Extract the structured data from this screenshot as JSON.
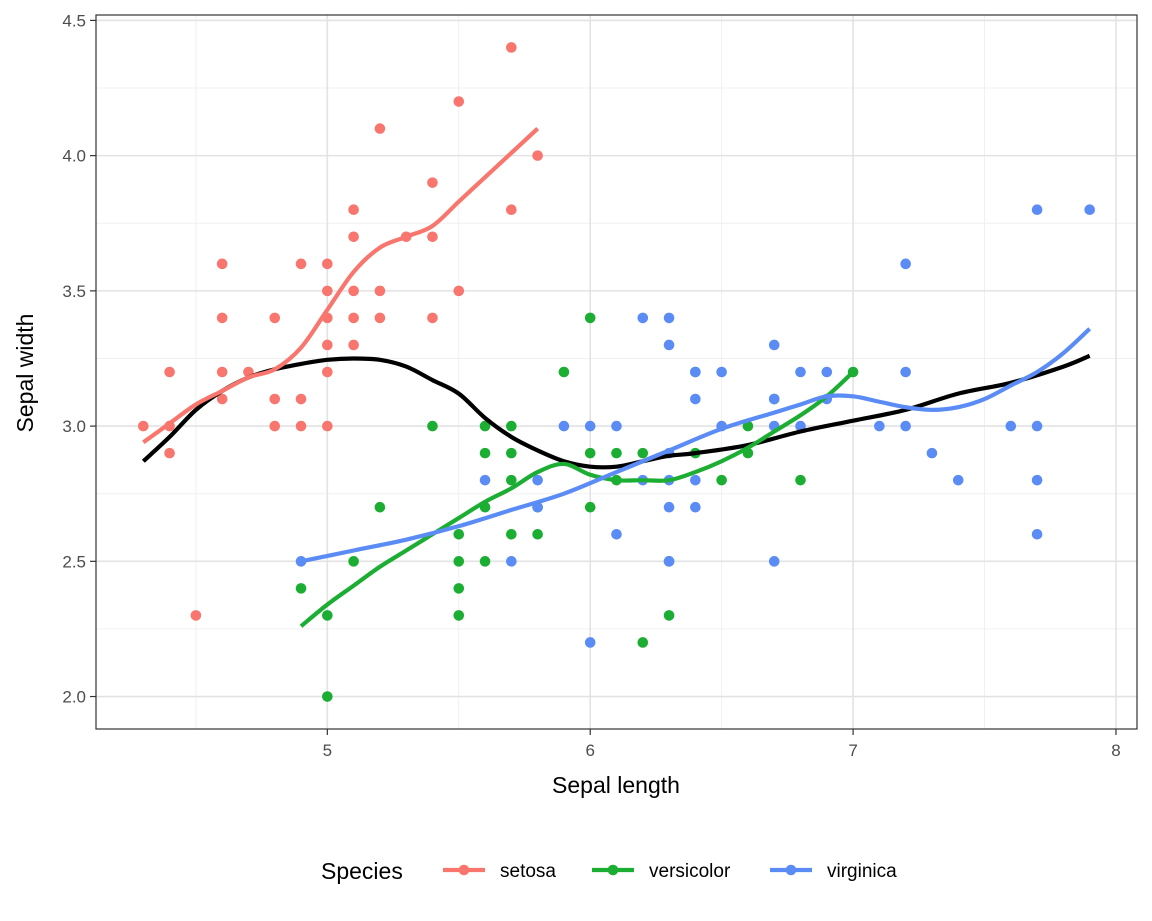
{
  "chart_data": {
    "type": "scatter",
    "title": "",
    "xlabel": "Sepal length",
    "ylabel": "Sepal width",
    "xlim": [
      4.12,
      8.08
    ],
    "ylim": [
      1.88,
      4.52
    ],
    "x_ticks": [
      5,
      6,
      7,
      8
    ],
    "x_tick_labels": [
      "5",
      "6",
      "7",
      "8"
    ],
    "y_ticks": [
      2.0,
      2.5,
      3.0,
      3.5,
      4.0,
      4.5
    ],
    "y_tick_labels": [
      "2.0",
      "2.5",
      "3.0",
      "3.5",
      "4.0",
      "4.5"
    ],
    "grid": true,
    "legend": {
      "title": "Species",
      "position": "bottom"
    },
    "series": [
      {
        "name": "setosa",
        "color": "#F8766D",
        "points": [
          [
            4.3,
            3.0
          ],
          [
            4.4,
            3.0
          ],
          [
            4.4,
            2.9
          ],
          [
            4.4,
            3.2
          ],
          [
            4.5,
            2.3
          ],
          [
            4.6,
            3.1
          ],
          [
            4.6,
            3.2
          ],
          [
            4.6,
            3.4
          ],
          [
            4.6,
            3.6
          ],
          [
            4.7,
            3.2
          ],
          [
            4.8,
            3.4
          ],
          [
            4.8,
            3.1
          ],
          [
            4.8,
            3.0
          ],
          [
            4.9,
            3.0
          ],
          [
            4.9,
            3.1
          ],
          [
            4.9,
            3.6
          ],
          [
            5.0,
            3.0
          ],
          [
            5.0,
            3.2
          ],
          [
            5.0,
            3.3
          ],
          [
            5.0,
            3.4
          ],
          [
            5.0,
            3.5
          ],
          [
            5.0,
            3.6
          ],
          [
            5.1,
            3.3
          ],
          [
            5.1,
            3.4
          ],
          [
            5.1,
            3.5
          ],
          [
            5.1,
            3.7
          ],
          [
            5.1,
            3.8
          ],
          [
            5.2,
            3.4
          ],
          [
            5.2,
            3.5
          ],
          [
            5.2,
            4.1
          ],
          [
            5.3,
            3.7
          ],
          [
            5.4,
            3.4
          ],
          [
            5.4,
            3.7
          ],
          [
            5.4,
            3.9
          ],
          [
            5.5,
            3.5
          ],
          [
            5.5,
            4.2
          ],
          [
            5.7,
            3.8
          ],
          [
            5.7,
            4.4
          ],
          [
            5.8,
            4.0
          ]
        ],
        "smooth": [
          [
            4.3,
            2.94
          ],
          [
            4.4,
            3.01
          ],
          [
            4.5,
            3.08
          ],
          [
            4.6,
            3.13
          ],
          [
            4.7,
            3.18
          ],
          [
            4.8,
            3.21
          ],
          [
            4.9,
            3.29
          ],
          [
            5.0,
            3.43
          ],
          [
            5.1,
            3.57
          ],
          [
            5.2,
            3.66
          ],
          [
            5.3,
            3.7
          ],
          [
            5.4,
            3.74
          ],
          [
            5.5,
            3.83
          ],
          [
            5.6,
            3.92
          ],
          [
            5.7,
            4.01
          ],
          [
            5.8,
            4.1
          ]
        ]
      },
      {
        "name": "versicolor",
        "color": "#1BAE33",
        "points": [
          [
            4.9,
            2.4
          ],
          [
            5.0,
            2.0
          ],
          [
            5.0,
            2.3
          ],
          [
            5.1,
            2.5
          ],
          [
            5.2,
            2.7
          ],
          [
            5.4,
            3.0
          ],
          [
            5.5,
            2.3
          ],
          [
            5.5,
            2.4
          ],
          [
            5.5,
            2.5
          ],
          [
            5.5,
            2.6
          ],
          [
            5.6,
            2.5
          ],
          [
            5.6,
            2.7
          ],
          [
            5.6,
            2.9
          ],
          [
            5.6,
            3.0
          ],
          [
            5.7,
            2.6
          ],
          [
            5.7,
            2.8
          ],
          [
            5.7,
            2.9
          ],
          [
            5.7,
            3.0
          ],
          [
            5.8,
            2.6
          ],
          [
            5.8,
            2.7
          ],
          [
            5.9,
            3.2
          ],
          [
            6.0,
            2.7
          ],
          [
            6.0,
            2.9
          ],
          [
            6.0,
            3.4
          ],
          [
            6.1,
            2.8
          ],
          [
            6.1,
            2.9
          ],
          [
            6.2,
            2.2
          ],
          [
            6.2,
            2.9
          ],
          [
            6.3,
            2.3
          ],
          [
            6.3,
            2.5
          ],
          [
            6.4,
            2.9
          ],
          [
            6.4,
            3.2
          ],
          [
            6.5,
            2.8
          ],
          [
            6.6,
            2.9
          ],
          [
            6.6,
            3.0
          ],
          [
            6.7,
            3.1
          ],
          [
            6.8,
            2.8
          ],
          [
            7.0,
            3.2
          ]
        ],
        "smooth": [
          [
            4.9,
            2.26
          ],
          [
            5.0,
            2.34
          ],
          [
            5.1,
            2.41
          ],
          [
            5.2,
            2.48
          ],
          [
            5.3,
            2.54
          ],
          [
            5.4,
            2.6
          ],
          [
            5.5,
            2.66
          ],
          [
            5.6,
            2.72
          ],
          [
            5.7,
            2.77
          ],
          [
            5.8,
            2.83
          ],
          [
            5.9,
            2.86
          ],
          [
            6.0,
            2.82
          ],
          [
            6.1,
            2.8
          ],
          [
            6.2,
            2.8
          ],
          [
            6.3,
            2.8
          ],
          [
            6.4,
            2.83
          ],
          [
            6.5,
            2.87
          ],
          [
            6.6,
            2.92
          ],
          [
            6.7,
            2.98
          ],
          [
            6.8,
            3.04
          ],
          [
            6.9,
            3.11
          ],
          [
            7.0,
            3.2
          ]
        ]
      },
      {
        "name": "virginica",
        "color": "#5B8CF5",
        "points": [
          [
            4.9,
            2.5
          ],
          [
            5.6,
            2.8
          ],
          [
            5.7,
            2.5
          ],
          [
            5.8,
            2.7
          ],
          [
            5.8,
            2.8
          ],
          [
            5.9,
            3.0
          ],
          [
            6.0,
            2.2
          ],
          [
            6.0,
            3.0
          ],
          [
            6.1,
            2.6
          ],
          [
            6.1,
            3.0
          ],
          [
            6.2,
            2.8
          ],
          [
            6.2,
            3.4
          ],
          [
            6.3,
            2.5
          ],
          [
            6.3,
            2.7
          ],
          [
            6.3,
            2.8
          ],
          [
            6.3,
            2.9
          ],
          [
            6.3,
            3.3
          ],
          [
            6.3,
            3.4
          ],
          [
            6.4,
            2.7
          ],
          [
            6.4,
            2.8
          ],
          [
            6.4,
            3.1
          ],
          [
            6.4,
            3.2
          ],
          [
            6.5,
            3.0
          ],
          [
            6.5,
            3.2
          ],
          [
            6.7,
            2.5
          ],
          [
            6.7,
            3.0
          ],
          [
            6.7,
            3.1
          ],
          [
            6.7,
            3.3
          ],
          [
            6.8,
            3.0
          ],
          [
            6.8,
            3.2
          ],
          [
            6.9,
            3.1
          ],
          [
            6.9,
            3.2
          ],
          [
            7.1,
            3.0
          ],
          [
            7.2,
            3.0
          ],
          [
            7.2,
            3.2
          ],
          [
            7.2,
            3.6
          ],
          [
            7.3,
            2.9
          ],
          [
            7.4,
            2.8
          ],
          [
            7.6,
            3.0
          ],
          [
            7.7,
            2.6
          ],
          [
            7.7,
            2.8
          ],
          [
            7.7,
            3.0
          ],
          [
            7.7,
            3.8
          ],
          [
            7.9,
            3.8
          ]
        ],
        "smooth": [
          [
            4.9,
            2.5
          ],
          [
            5.1,
            2.54
          ],
          [
            5.3,
            2.58
          ],
          [
            5.5,
            2.63
          ],
          [
            5.7,
            2.69
          ],
          [
            5.9,
            2.75
          ],
          [
            6.1,
            2.83
          ],
          [
            6.3,
            2.91
          ],
          [
            6.5,
            2.99
          ],
          [
            6.7,
            3.05
          ],
          [
            6.8,
            3.08
          ],
          [
            6.9,
            3.11
          ],
          [
            7.0,
            3.11
          ],
          [
            7.1,
            3.09
          ],
          [
            7.2,
            3.07
          ],
          [
            7.3,
            3.06
          ],
          [
            7.4,
            3.07
          ],
          [
            7.5,
            3.1
          ],
          [
            7.6,
            3.15
          ],
          [
            7.7,
            3.2
          ],
          [
            7.8,
            3.27
          ],
          [
            7.9,
            3.36
          ]
        ]
      }
    ],
    "overall_smooth": {
      "color": "#000000",
      "points": [
        [
          4.3,
          2.87
        ],
        [
          4.4,
          2.96
        ],
        [
          4.5,
          3.06
        ],
        [
          4.6,
          3.13
        ],
        [
          4.7,
          3.18
        ],
        [
          4.8,
          3.21
        ],
        [
          4.9,
          3.23
        ],
        [
          5.0,
          3.245
        ],
        [
          5.1,
          3.25
        ],
        [
          5.2,
          3.245
        ],
        [
          5.3,
          3.22
        ],
        [
          5.4,
          3.17
        ],
        [
          5.5,
          3.12
        ],
        [
          5.6,
          3.03
        ],
        [
          5.7,
          2.96
        ],
        [
          5.8,
          2.91
        ],
        [
          5.9,
          2.87
        ],
        [
          6.0,
          2.85
        ],
        [
          6.1,
          2.85
        ],
        [
          6.2,
          2.87
        ],
        [
          6.3,
          2.89
        ],
        [
          6.4,
          2.9
        ],
        [
          6.6,
          2.93
        ],
        [
          6.8,
          2.98
        ],
        [
          7.0,
          3.02
        ],
        [
          7.2,
          3.06
        ],
        [
          7.4,
          3.12
        ],
        [
          7.6,
          3.16
        ],
        [
          7.8,
          3.22
        ],
        [
          7.9,
          3.26
        ]
      ]
    }
  }
}
